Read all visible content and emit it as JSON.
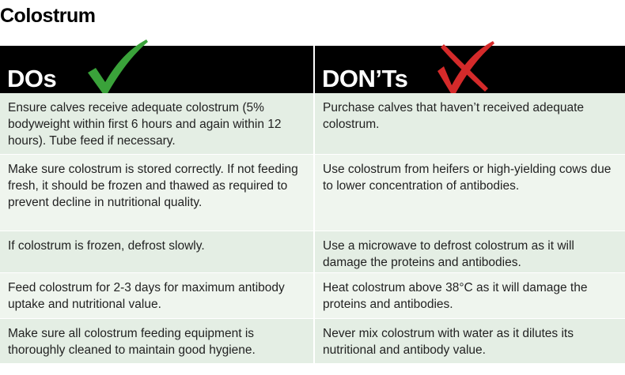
{
  "header": {
    "title": "Colostrum"
  },
  "table": {
    "columns": [
      "DOs",
      "DON’Ts"
    ],
    "rows": [
      [
        "Ensure calves receive adequate colostrum (5% bodyweight within first 6 hours and again within 12 hours). Tube feed if necessary.",
        "Purchase calves that haven’t received adequate colostrum."
      ],
      [
        "Make sure colostrum is stored correctly. If not feeding fresh, it should be frozen and thawed as required to prevent decline in nutritional quality.",
        "Use colostrum from heifers or high-yielding cows due to lower concentration of antibodies."
      ],
      [
        "If colostrum is frozen, defrost slowly.",
        "Use a microwave to defrost colostrum as it will damage the proteins and antibodies."
      ],
      [
        "Feed colostrum for 2-3 days for maximum antibody uptake and nutritional value.",
        "Heat colostrum above 38°C as it will damage the proteins and antibodies."
      ],
      [
        "Make sure all colostrum feeding equipment is thoroughly cleaned to maintain good hygiene.",
        "Never mix colostrum with water as it dilutes its nutritional and antibody value."
      ]
    ]
  }
}
